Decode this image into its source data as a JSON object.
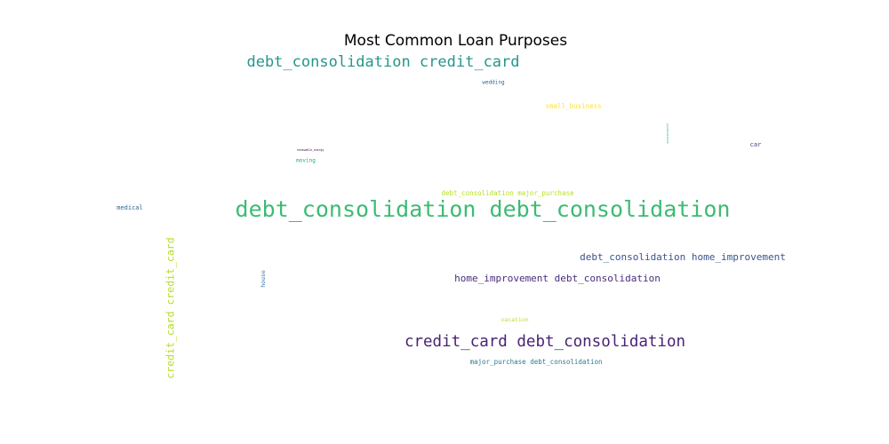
{
  "chart_data": {
    "type": "wordcloud",
    "title": "Most Common Loan Purposes",
    "words": [
      {
        "text": "debt_consolidation debt_consolidation",
        "weight": 1.0,
        "color": "#3dbb74",
        "orientation": "horizontal"
      },
      {
        "text": "credit_card debt_consolidation",
        "weight": 0.7,
        "color": "#482475",
        "orientation": "horizontal"
      },
      {
        "text": "debt_consolidation credit_card",
        "weight": 0.68,
        "color": "#26968b",
        "orientation": "horizontal"
      },
      {
        "text": "credit_card credit_card",
        "weight": 0.48,
        "color": "#b5dd2b",
        "orientation": "vertical"
      },
      {
        "text": "debt_consolidation home_improvement",
        "weight": 0.44,
        "color": "#3a548c",
        "orientation": "horizontal"
      },
      {
        "text": "home_improvement debt_consolidation",
        "weight": 0.44,
        "color": "#472d7b",
        "orientation": "horizontal"
      },
      {
        "text": "debt_consolidation major_purchase",
        "weight": 0.3,
        "color": "#b8de29",
        "orientation": "horizontal"
      },
      {
        "text": "major_purchase debt_consolidation",
        "weight": 0.3,
        "color": "#2a7b8e",
        "orientation": "horizontal"
      },
      {
        "text": "small_business",
        "weight": 0.3,
        "color": "#fde725",
        "orientation": "horizontal"
      },
      {
        "text": "car",
        "weight": 0.28,
        "color": "#433e85",
        "orientation": "horizontal"
      },
      {
        "text": "medical",
        "weight": 0.28,
        "color": "#31688e",
        "orientation": "horizontal"
      },
      {
        "text": "house",
        "weight": 0.26,
        "color": "#3e74a3",
        "orientation": "vertical"
      },
      {
        "text": "vacation",
        "weight": 0.26,
        "color": "#b5de2b",
        "orientation": "horizontal"
      },
      {
        "text": "wedding",
        "weight": 0.24,
        "color": "#2f6b8e",
        "orientation": "horizontal"
      },
      {
        "text": "moving",
        "weight": 0.24,
        "color": "#22a884",
        "orientation": "horizontal"
      },
      {
        "text": "educational",
        "weight": 0.14,
        "color": "#2db27d",
        "orientation": "vertical"
      },
      {
        "text": "renewable_energy",
        "weight": 0.12,
        "color": "#440154",
        "orientation": "horizontal"
      }
    ]
  }
}
